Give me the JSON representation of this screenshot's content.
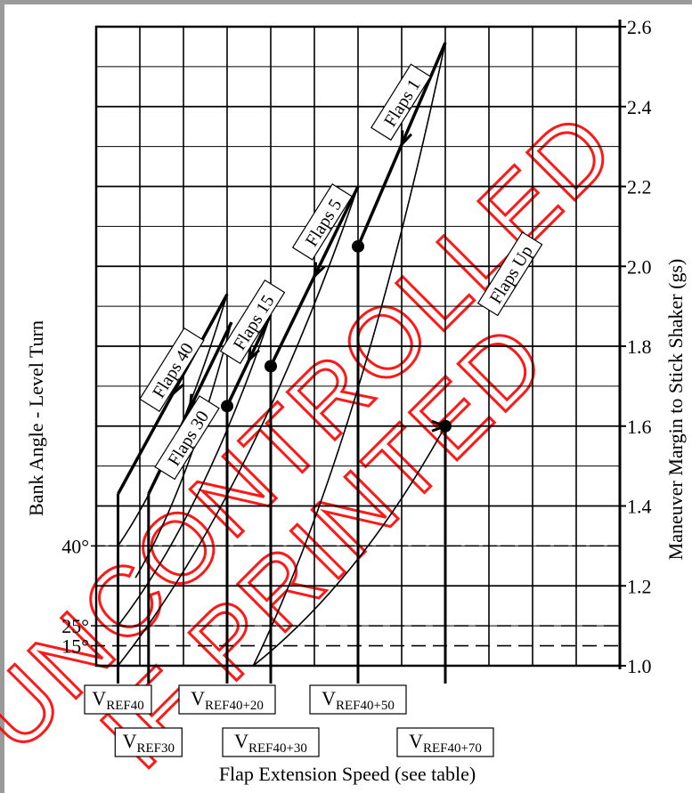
{
  "chart_data": {
    "type": "line",
    "y_right_axis": {
      "label": "Maneuver Margin to Stick Shaker (gs)",
      "range": [
        1.0,
        2.6
      ],
      "ticks": [
        "1.0",
        "1.2",
        "1.4",
        "1.6",
        "1.8",
        "2.0",
        "2.2",
        "2.4",
        "2.6"
      ]
    },
    "y_left_axis": {
      "label": "Bank Angle - Level Turn",
      "ticks": [
        {
          "label": "15°",
          "g": 1.05
        },
        {
          "label": "25°",
          "g": 1.1
        },
        {
          "label": "40°",
          "g": 1.3
        }
      ]
    },
    "x_axis": {
      "label": "Flap Extension Speed (see table)",
      "speed_labels": [
        {
          "main": "V",
          "sub": "REF40",
          "x": 0.5,
          "row": 1
        },
        {
          "main": "V",
          "sub": "REF30",
          "x": 1.2,
          "row": 2
        },
        {
          "main": "V",
          "sub": "REF40+20",
          "x": 3.0,
          "row": 1
        },
        {
          "main": "V",
          "sub": "REF40+30",
          "x": 4.0,
          "row": 2
        },
        {
          "main": "V",
          "sub": "REF40+50",
          "x": 6.0,
          "row": 1
        },
        {
          "main": "V",
          "sub": "REF40+70",
          "x": 8.0,
          "row": 2
        }
      ]
    },
    "grid": true,
    "series": [
      {
        "name": "Flaps 40",
        "label_at": {
          "x": 1.75,
          "g": 1.74
        },
        "points": [
          [
            0.5,
            1.3
          ],
          [
            3.0,
            1.93
          ]
        ],
        "start_x": 0.5,
        "start_g": 1.43
      },
      {
        "name": "Flaps 30",
        "label_at": {
          "x": 2.1,
          "g": 1.57
        },
        "points": [
          [
            0.9,
            1.22
          ],
          [
            3.1,
            1.86
          ]
        ],
        "start_x": 1.2,
        "start_g": 1.43
      },
      {
        "name": "Flaps 15",
        "label_at": {
          "x": 3.6,
          "g": 1.86
        },
        "points": [
          [
            0.5,
            1.1
          ],
          [
            4.0,
            1.88
          ]
        ],
        "start_x": 3.0,
        "start_g": 1.65
      },
      {
        "name": "Flaps 5",
        "label_at": {
          "x": 5.2,
          "g": 2.11
        },
        "points": [
          [
            0.5,
            1.0
          ],
          [
            6.0,
            2.2
          ]
        ],
        "start_x": 4.0,
        "start_g": 1.75
      },
      {
        "name": "Flaps 1",
        "label_at": {
          "x": 7.0,
          "g": 2.41
        },
        "points": [
          [
            3.6,
            1.0
          ],
          [
            8.0,
            2.56
          ]
        ],
        "start_x": 6.0,
        "start_g": 2.05
      },
      {
        "name": "Flaps Up",
        "label_at": {
          "x": 9.5,
          "g": 1.98
        },
        "points": [
          [
            3.6,
            1.0
          ],
          [
            8.0,
            1.6
          ]
        ],
        "start_x": 8.0,
        "start_g": 1.6
      }
    ],
    "operating_points": [
      {
        "x": 3.0,
        "g": 1.65
      },
      {
        "x": 4.0,
        "g": 1.75
      },
      {
        "x": 6.0,
        "g": 2.05
      },
      {
        "x": 8.0,
        "g": 1.6
      }
    ]
  },
  "watermark": {
    "line1": "UNCONTROLLED",
    "line2": "IF PRINTED",
    "color": "#ff0000"
  }
}
